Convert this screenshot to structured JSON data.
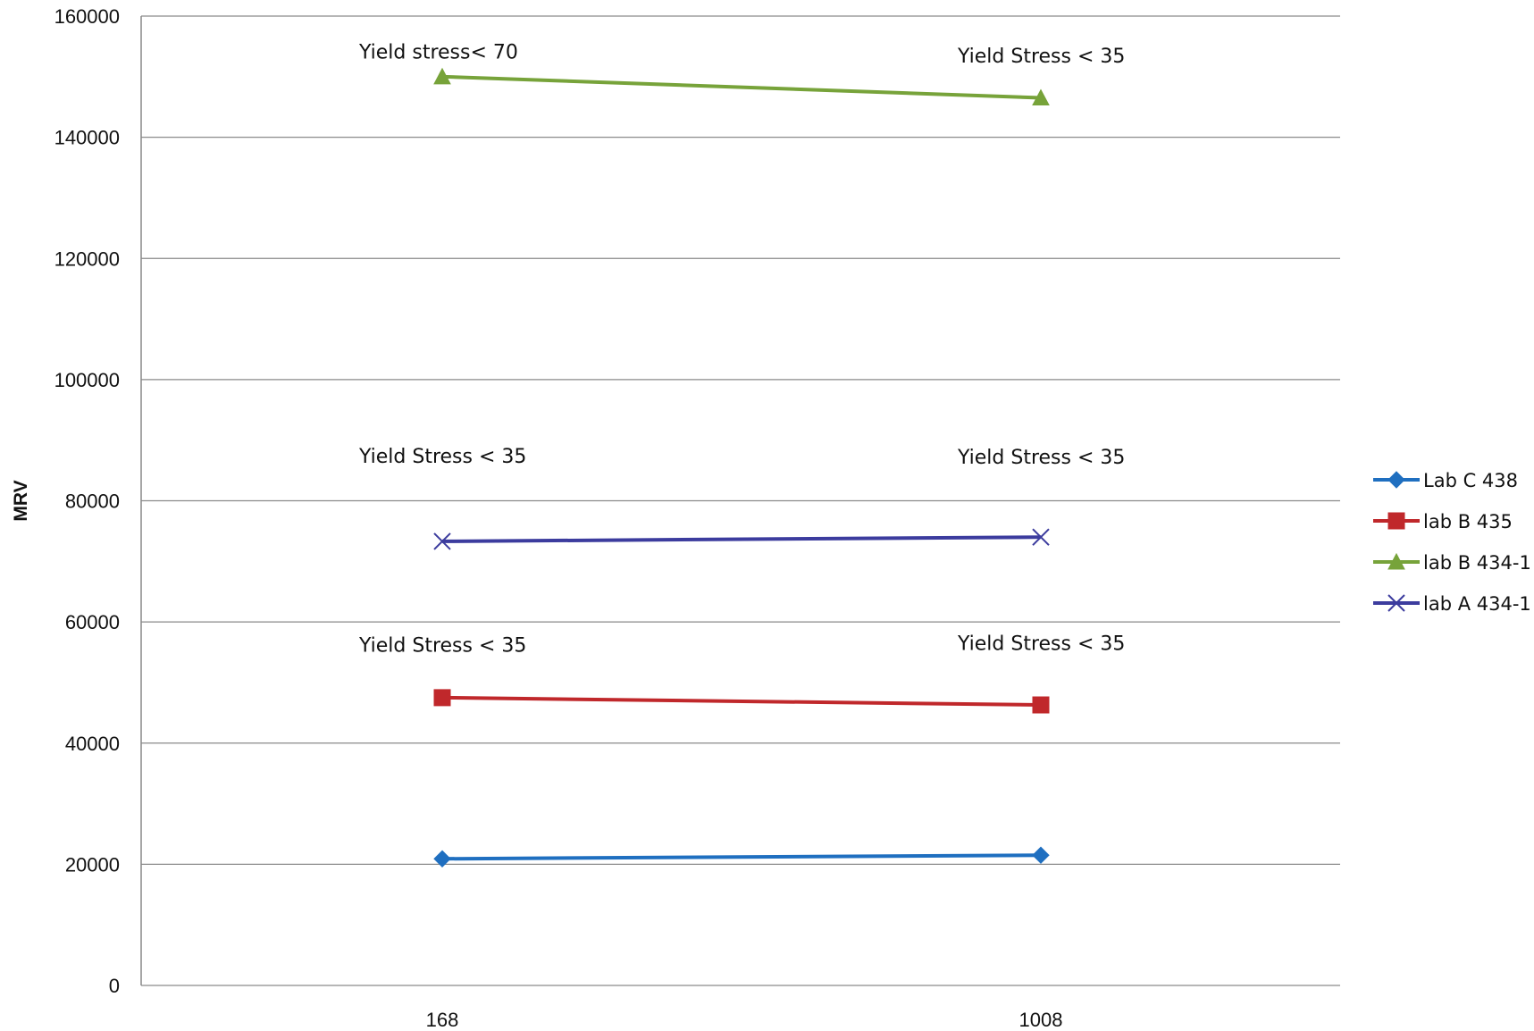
{
  "chart_data": {
    "type": "line",
    "title": "",
    "xlabel": "",
    "ylabel": "MRV",
    "ylim": [
      0,
      160000
    ],
    "yticks": [
      0,
      20000,
      40000,
      60000,
      80000,
      100000,
      120000,
      140000,
      160000
    ],
    "categories": [
      "168",
      "1008"
    ],
    "grid": true,
    "legend_position": "right",
    "series": [
      {
        "name": "Lab C 438",
        "values": [
          20900,
          21500
        ],
        "color": "#1f6fc0",
        "marker": "diamond"
      },
      {
        "name": "lab B 435",
        "values": [
          47500,
          46300
        ],
        "color": "#c0282b",
        "marker": "square"
      },
      {
        "name": "lab B 434-1",
        "values": [
          150000,
          146500
        ],
        "color": "#77a33a",
        "marker": "triangle"
      },
      {
        "name": "lab A 434-1",
        "values": [
          73300,
          74000
        ],
        "color": "#3c3c9e",
        "marker": "x"
      }
    ],
    "annotations": [
      {
        "text": "Yield stress< 70",
        "category": "168",
        "y": 153000
      },
      {
        "text": "Yield Stress < 35",
        "category": "1008",
        "y": 152300
      },
      {
        "text": "Yield Stress < 35",
        "category": "168",
        "y": 86300
      },
      {
        "text": "Yield Stress < 35",
        "category": "1008",
        "y": 86100
      },
      {
        "text": "Yield Stress < 35",
        "category": "168",
        "y": 55100
      },
      {
        "text": "Yield Stress < 35",
        "category": "1008",
        "y": 55400
      }
    ]
  }
}
